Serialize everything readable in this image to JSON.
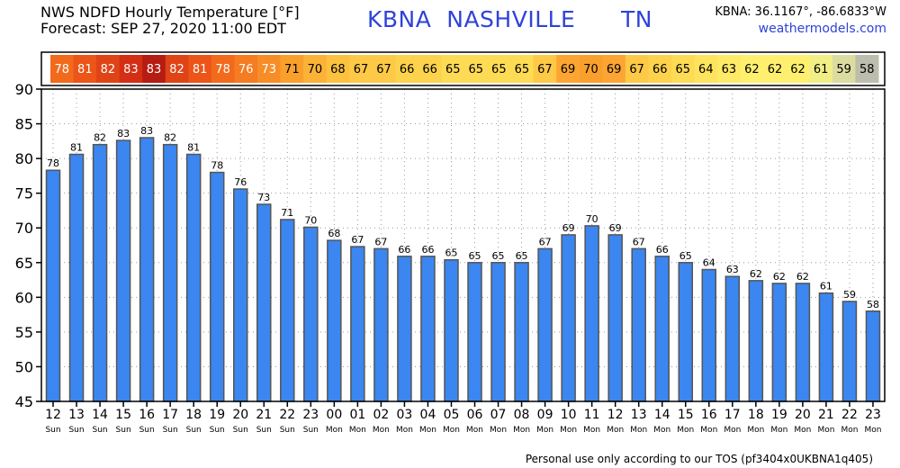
{
  "header": {
    "title_line1": "NWS NDFD Hourly Temperature [°F]",
    "title_line2": "Forecast: SEP 27, 2020 11:00 EDT",
    "station": "KBNA  NASHVILLE      TN",
    "coords": "KBNA: 36.1167°, -86.6833°W",
    "website": "weathermodels.com"
  },
  "footer": {
    "tos": "Personal use only according to our TOS (pf3404x0UKBNA1q405)"
  },
  "chart_data": {
    "type": "bar",
    "categories": [
      "12",
      "13",
      "14",
      "15",
      "16",
      "17",
      "18",
      "19",
      "20",
      "21",
      "22",
      "23",
      "00",
      "01",
      "02",
      "03",
      "04",
      "05",
      "06",
      "07",
      "08",
      "09",
      "10",
      "11",
      "12",
      "13",
      "14",
      "15",
      "16",
      "17",
      "18",
      "19",
      "20",
      "21",
      "22",
      "23"
    ],
    "days": [
      "Sun",
      "Sun",
      "Sun",
      "Sun",
      "Sun",
      "Sun",
      "Sun",
      "Sun",
      "Sun",
      "Sun",
      "Sun",
      "Sun",
      "Mon",
      "Mon",
      "Mon",
      "Mon",
      "Mon",
      "Mon",
      "Mon",
      "Mon",
      "Mon",
      "Mon",
      "Mon",
      "Mon",
      "Mon",
      "Mon",
      "Mon",
      "Mon",
      "Mon",
      "Mon",
      "Mon",
      "Mon",
      "Mon",
      "Mon",
      "Mon",
      "Mon"
    ],
    "values": [
      78.3,
      80.6,
      82,
      82.6,
      83,
      82,
      80.6,
      78,
      75.6,
      73.4,
      71.2,
      70.1,
      68.2,
      67.3,
      67,
      65.9,
      65.9,
      65.4,
      65,
      65,
      65,
      67,
      69,
      70.3,
      69,
      67,
      65.9,
      65,
      64,
      63,
      62.4,
      62,
      62,
      60.6,
      59.4,
      58
    ],
    "labels": [
      "78",
      "81",
      "82",
      "83",
      "83",
      "82",
      "81",
      "78",
      "76",
      "73",
      "71",
      "70",
      "68",
      "67",
      "67",
      "66",
      "66",
      "65",
      "65",
      "65",
      "65",
      "67",
      "69",
      "70",
      "69",
      "67",
      "66",
      "65",
      "64",
      "63",
      "62",
      "62",
      "62",
      "61",
      "59",
      "58"
    ],
    "strip_colors": [
      "#f26a1c",
      "#ec5418",
      "#e04316",
      "#d42e14",
      "#b51c12",
      "#e04316",
      "#ec5418",
      "#f26a1c",
      "#f57c20",
      "#f78d26",
      "#f9a02c",
      "#fbb236",
      "#fcc13f",
      "#fdc946",
      "#fdc946",
      "#fdd24c",
      "#fdd24c",
      "#fedb54",
      "#fedb54",
      "#fedb54",
      "#fedb54",
      "#fdc946",
      "#fca533",
      "#f9a02c",
      "#fca533",
      "#fdc946",
      "#fdd24c",
      "#fedb54",
      "#fee35e",
      "#feea66",
      "#fef06e",
      "#fef06e",
      "#fef06e",
      "#f2ee86",
      "#dcdca0",
      "#bdbdae"
    ],
    "ylim": [
      45,
      90
    ],
    "yticks": [
      45,
      50,
      55,
      60,
      65,
      70,
      75,
      80,
      85,
      90
    ],
    "bar_color": "#3b86f0",
    "bar_edge": "#555555"
  }
}
